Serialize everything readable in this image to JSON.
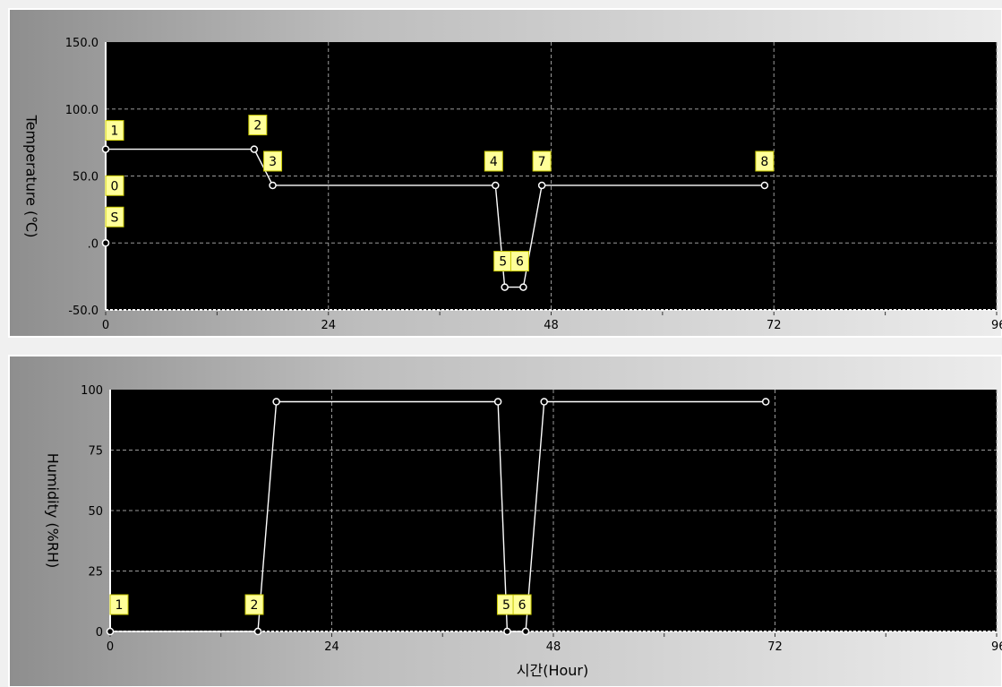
{
  "chart_data": [
    {
      "type": "line",
      "ylabel": "Temperature (℃)",
      "xlabel": "",
      "xlim": [
        0,
        96
      ],
      "ylim": [
        -50,
        150
      ],
      "x_ticks": [
        "0",
        "24",
        "48",
        "72",
        "96"
      ],
      "y_ticks": [
        "150.0",
        "100.0",
        "50.0",
        ".0",
        "-50.0"
      ],
      "grid": true,
      "series": [
        {
          "x": [
            0,
            0,
            0,
            16,
            18,
            42,
            43,
            45,
            47,
            71
          ],
          "y": [
            0,
            0,
            70,
            70,
            43,
            43,
            -33,
            -33,
            43,
            43
          ]
        }
      ],
      "markers": [
        {
          "label": "S",
          "x": 0,
          "y": 0
        },
        {
          "label": "0",
          "x": 0,
          "y": 0
        },
        {
          "label": "1",
          "x": 0,
          "y": 70
        },
        {
          "label": "2",
          "x": 16,
          "y": 70
        },
        {
          "label": "3",
          "x": 18,
          "y": 43
        },
        {
          "label": "4",
          "x": 42,
          "y": 43
        },
        {
          "label": "5",
          "x": 43,
          "y": -33
        },
        {
          "label": "6",
          "x": 45,
          "y": -33
        },
        {
          "label": "7",
          "x": 47,
          "y": 43
        },
        {
          "label": "8",
          "x": 71,
          "y": 43
        }
      ]
    },
    {
      "type": "line",
      "ylabel": "Humidity (%RH)",
      "xlabel": "시간(Hour)",
      "xlim": [
        0,
        96
      ],
      "ylim": [
        0,
        100
      ],
      "x_ticks": [
        "0",
        "24",
        "48",
        "72",
        "96"
      ],
      "y_ticks": [
        "100",
        "75",
        "50",
        "25",
        "0"
      ],
      "grid": true,
      "series": [
        {
          "x": [
            0,
            16,
            18,
            42,
            43,
            45,
            47,
            71
          ],
          "y": [
            0,
            0,
            95,
            95,
            0,
            0,
            95,
            95
          ]
        }
      ],
      "markers": [
        {
          "label": "1",
          "x": 0,
          "y": 0
        },
        {
          "label": "2",
          "x": 16,
          "y": 0
        },
        {
          "label": "5",
          "x": 43,
          "y": 0
        },
        {
          "label": "6",
          "x": 45,
          "y": 0
        }
      ]
    }
  ]
}
